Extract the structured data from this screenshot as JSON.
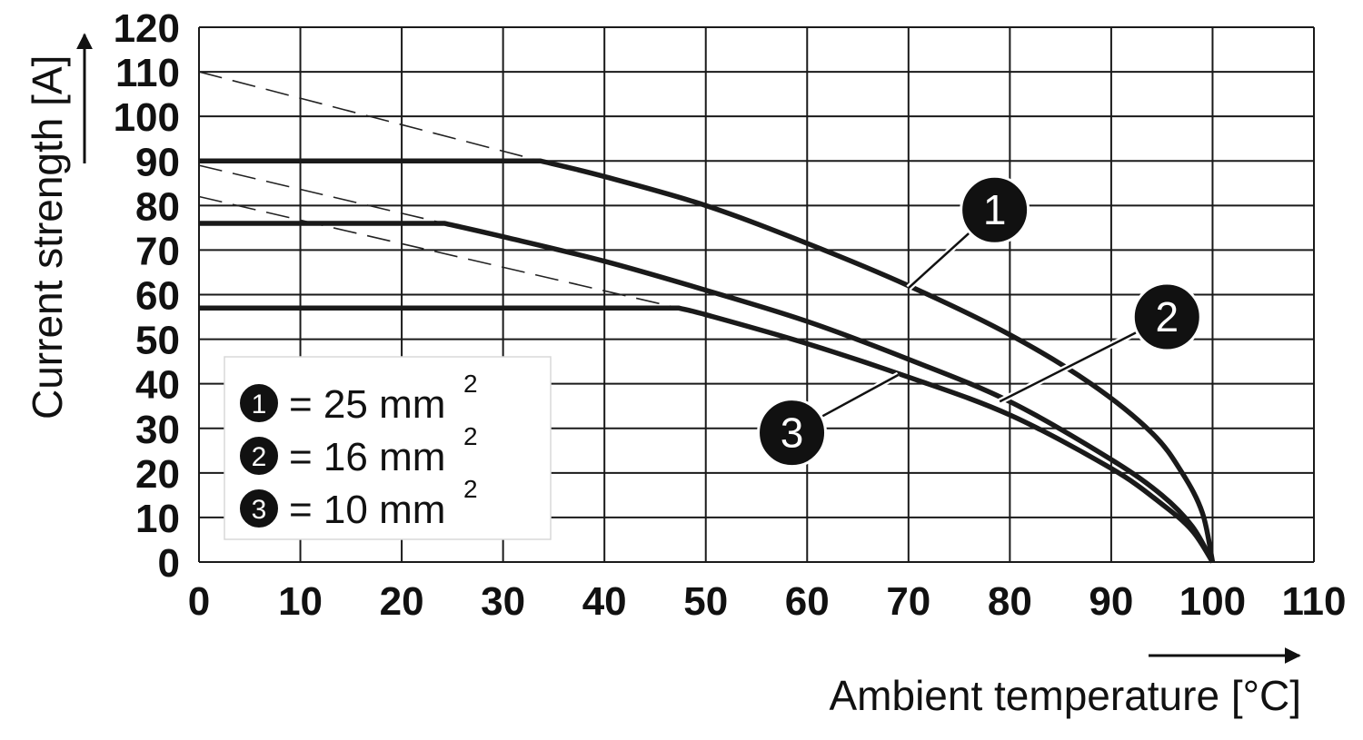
{
  "chart_data": {
    "type": "line",
    "xlabel": "Ambient temperature [°C]",
    "ylabel": "Current strength [A]",
    "xlim": [
      0,
      110
    ],
    "ylim": [
      0,
      120
    ],
    "x_ticks": [
      0,
      10,
      20,
      30,
      40,
      50,
      60,
      70,
      80,
      90,
      100,
      110
    ],
    "y_ticks": [
      0,
      10,
      20,
      30,
      40,
      50,
      60,
      70,
      80,
      90,
      100,
      110,
      120
    ],
    "grid": true,
    "series": [
      {
        "marker": "1",
        "x": [
          0,
          33.7,
          40,
          50,
          60,
          70,
          80,
          88,
          94,
          97,
          99,
          100
        ],
        "y": [
          90,
          90,
          86.5,
          80,
          71.5,
          62,
          51,
          40,
          29,
          20,
          11,
          0
        ],
        "extrapolated": {
          "x": [
            0,
            33.7
          ],
          "y": [
            110,
            90
          ]
        }
      },
      {
        "marker": "2",
        "x": [
          0,
          24.2,
          30,
          40,
          50,
          60,
          70,
          80,
          90,
          95,
          98,
          100
        ],
        "y": [
          76,
          76,
          73,
          67.5,
          61,
          54,
          45.5,
          36,
          23,
          15,
          8,
          0
        ],
        "extrapolated": {
          "x": [
            0,
            24.2
          ],
          "y": [
            89,
            76
          ]
        }
      },
      {
        "marker": "3",
        "x": [
          0,
          47.3,
          50,
          60,
          70,
          80,
          90,
          95,
          98,
          100
        ],
        "y": [
          57,
          57,
          55.5,
          49,
          41.5,
          33,
          21,
          13,
          7,
          0
        ],
        "extrapolated": {
          "x": [
            0,
            47.3
          ],
          "y": [
            82,
            57
          ]
        }
      }
    ],
    "legend": {
      "placement": "bottom-left",
      "entries": [
        {
          "marker": "1",
          "text": "= 25 mm",
          "sup": "2"
        },
        {
          "marker": "2",
          "text": "= 16 mm",
          "sup": "2"
        },
        {
          "marker": "3",
          "text": "= 10 mm",
          "sup": "2"
        }
      ]
    },
    "callouts": [
      {
        "marker": "1",
        "at": [
          70,
          61.5
        ],
        "label_at": [
          78.5,
          79
        ]
      },
      {
        "marker": "2",
        "at": [
          79,
          36
        ],
        "label_at": [
          95.5,
          55
        ]
      },
      {
        "marker": "3",
        "at": [
          69,
          42
        ],
        "label_at": [
          58.5,
          29
        ]
      }
    ]
  }
}
